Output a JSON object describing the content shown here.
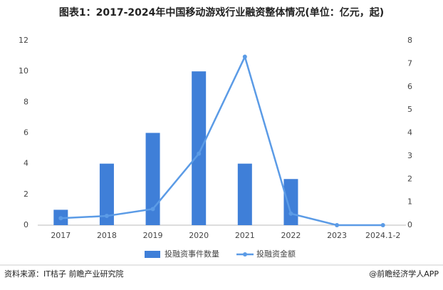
{
  "chart_data": {
    "type": "combo",
    "title": "图表1：2017-2024年中国移动游戏行业融资整体情况(单位：亿元，起)",
    "categories": [
      "2017",
      "2018",
      "2019",
      "2020",
      "2021",
      "2022",
      "2023",
      "2024.1-2"
    ],
    "series": [
      {
        "name": "投融资事件数量",
        "type": "bar",
        "color": "#3f7fd8",
        "values": [
          1,
          4,
          6,
          10,
          4,
          3,
          0,
          0
        ]
      },
      {
        "name": "投融资金额",
        "type": "line",
        "axis": "y2",
        "color": "#5b9be6",
        "values": [
          0.3,
          0.4,
          0.7,
          3.1,
          7.3,
          0.5,
          0,
          0
        ]
      }
    ],
    "ylim": [
      0,
      12
    ],
    "yticks": [
      0,
      2,
      4,
      6,
      8,
      10,
      12
    ],
    "y2lim": [
      0,
      8
    ],
    "y2ticks": [
      0,
      1,
      2,
      3,
      4,
      5,
      6,
      7,
      8
    ],
    "source": "资料来源：IT桔子 前瞻产业研究院",
    "credit": "@前瞻经济学人APP"
  }
}
